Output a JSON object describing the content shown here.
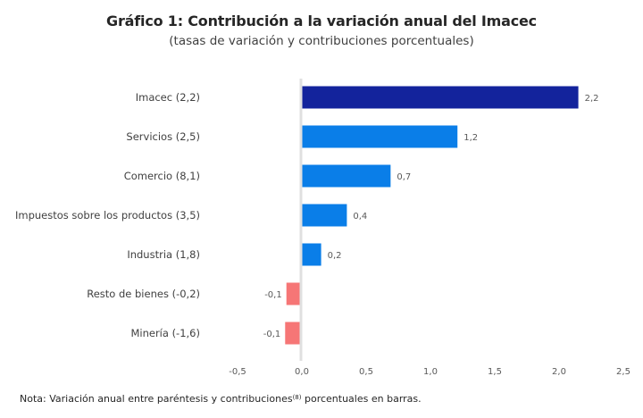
{
  "chart_data": {
    "type": "bar",
    "orientation": "horizontal",
    "title": "Gráfico 1: Contribución a la variación anual del Imacec",
    "subtitle": "(tasas de variación y contribuciones porcentuales)",
    "xlabel": "",
    "ylabel": "",
    "xlim": [
      -0.5,
      2.5
    ],
    "xticks": [
      -0.5,
      0.0,
      0.5,
      1.0,
      1.5,
      2.0,
      2.5
    ],
    "xtick_labels": [
      "-0,5",
      "0,0",
      "0,5",
      "1,0",
      "1,5",
      "2,0",
      "2,5"
    ],
    "grid": false,
    "legend": "none",
    "categories": [
      "Imacec (2,2)",
      "Servicios (2,5)",
      "Comercio (8,1)",
      "Impuestos sobre los productos (3,5)",
      "Industria (1,8)",
      "Resto de bienes (-0,2)",
      "Minería (-1,6)"
    ],
    "values": [
      2.15,
      1.21,
      0.69,
      0.35,
      0.15,
      -0.12,
      -0.13
    ],
    "value_labels": [
      "2,2",
      "1,2",
      "0,7",
      "0,4",
      "0,2",
      "-0,1",
      "-0,1"
    ],
    "colors": [
      "#13239c",
      "#0a7ee8",
      "#0a7ee8",
      "#0a7ee8",
      "#0a7ee8",
      "#f67676",
      "#f67676"
    ],
    "zero_line_color": "#e0e0e0"
  },
  "note": {
    "prefix": "Nota: Variación anual entre paréntesis y contribuciones",
    "superscript": "(8)",
    "suffix": " porcentuales en barras."
  }
}
